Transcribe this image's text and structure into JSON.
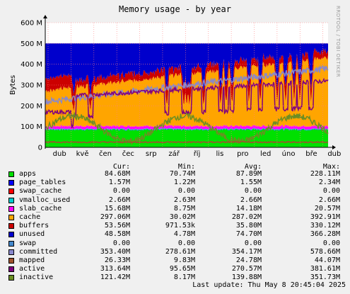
{
  "chart_data": {
    "type": "area",
    "title": "Memory usage - by year",
    "ylabel": "Bytes",
    "watermark": "RRDTOOL / TOBI OETIKER",
    "y_ticks": [
      "0",
      "100 M",
      "200 M",
      "300 M",
      "400 M",
      "500 M",
      "600 M"
    ],
    "ylim": [
      0,
      600
    ],
    "x_ticks": [
      "dub",
      "kvě",
      "čen",
      "čec",
      "srp",
      "zář",
      "říj",
      "lis",
      "pro",
      "led",
      "úno",
      "bře",
      "dub"
    ],
    "grid": true,
    "stack_total": 500,
    "legend_header": [
      "Cur:",
      "Min:",
      "Avg:",
      "Max:"
    ],
    "series": [
      {
        "name": "apps",
        "color": "#00e000",
        "cur": "84.68M",
        "min": "70.74M",
        "avg": "87.89M",
        "max": "228.11M",
        "approx": 85
      },
      {
        "name": "page_tables",
        "color": "#0000ff",
        "cur": "1.57M",
        "min": "1.22M",
        "avg": "1.55M",
        "max": "2.34M",
        "approx": 1.5
      },
      {
        "name": "swap_cache",
        "color": "#ff0000",
        "cur": "0.00",
        "min": "0.00",
        "avg": "0.00",
        "max": "0.00",
        "approx": 0
      },
      {
        "name": "vmalloc_used",
        "color": "#00cccc",
        "cur": "2.66M",
        "min": "2.63M",
        "avg": "2.66M",
        "max": "2.66M",
        "approx": 2.7
      },
      {
        "name": "slab_cache",
        "color": "#ff00ff",
        "cur": "15.68M",
        "min": "8.75M",
        "avg": "14.18M",
        "max": "20.57M",
        "approx": 14
      },
      {
        "name": "cache",
        "color": "#ffa500",
        "cur": "297.06M",
        "min": "30.02M",
        "avg": "287.02M",
        "max": "392.91M",
        "approx": 287
      },
      {
        "name": "buffers",
        "color": "#cc0000",
        "cur": "53.56M",
        "min": "971.53k",
        "avg": "35.80M",
        "max": "330.12M",
        "approx": 36
      },
      {
        "name": "unused",
        "color": "#0000cc",
        "cur": "48.58M",
        "min": "4.78M",
        "avg": "74.70M",
        "max": "366.28M",
        "approx": 75
      },
      {
        "name": "swap",
        "color": "#4488cc",
        "cur": "0.00",
        "min": "0.00",
        "avg": "0.00",
        "max": "0.00",
        "approx": 0
      },
      {
        "name": "committed",
        "color": "#8888cc",
        "cur": "353.40M",
        "min": "278.61M",
        "avg": "354.17M",
        "max": "578.66M",
        "approx": 354
      },
      {
        "name": "mapped",
        "color": "#a0522d",
        "cur": "26.33M",
        "min": "9.83M",
        "avg": "24.78M",
        "max": "44.07M",
        "approx": 25
      },
      {
        "name": "active",
        "color": "#800080",
        "cur": "313.64M",
        "min": "95.65M",
        "avg": "270.57M",
        "max": "381.61M",
        "approx": 271
      },
      {
        "name": "inactive",
        "color": "#6b8e23",
        "cur": "121.42M",
        "min": "8.17M",
        "avg": "139.88M",
        "max": "351.73M",
        "approx": 140
      }
    ]
  },
  "footer": {
    "last_update": "Last update:  Thu May  8 20:45:04 2025"
  }
}
